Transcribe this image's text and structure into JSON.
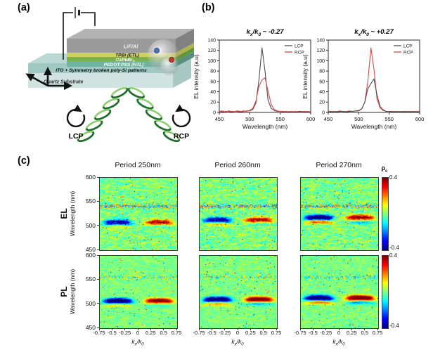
{
  "panels": {
    "a": "(a)",
    "b": "(b)",
    "c": "(c)"
  },
  "device": {
    "layers": [
      {
        "name": "cathode",
        "label": "LiF/Al",
        "color": "#9b9b9b",
        "text_color": "#f2f2f2"
      },
      {
        "name": "etl",
        "label": "TPBi (ETL)",
        "color": "#ced35e",
        "text_color": "#1a1a1a"
      },
      {
        "name": "emitter",
        "label": "CsPbBr",
        "label_sub": "3",
        "color": "#79b14e",
        "text_color": "#ffffff"
      },
      {
        "name": "htl",
        "label": "PEDOT:PSS (HTL)",
        "color": "#6fb3a0",
        "text_color": "#ffffff"
      },
      {
        "name": "ito",
        "label": "ITO + Symmetry broken poly-Si patterns",
        "color": "#9ac6be",
        "text_color": "#111111"
      },
      {
        "name": "substrate",
        "label": "Quartz Substrate",
        "color": "#cde2de",
        "text_color": "#333333"
      }
    ],
    "lcp_label": "LCP",
    "rcp_label": "RCP",
    "helix_dark": "#1e6f2d",
    "helix_light": "#8fce6f"
  },
  "chart_data": [
    {
      "type": "line",
      "title": "kx/k0 ~ -0.27",
      "xlabel": "Wavelength (nm)",
      "ylabel": "EL intensity (a.u)",
      "xlim": [
        450,
        600
      ],
      "ylim": [
        0,
        140
      ],
      "xticks": [
        450,
        500,
        550,
        600
      ],
      "yticks": [
        0,
        20,
        40,
        60,
        80,
        100,
        120,
        140
      ],
      "legend": [
        {
          "label": "LCP",
          "color": "#4d4d4d"
        },
        {
          "label": "RCP",
          "color": "#e04545"
        }
      ],
      "x": [
        450,
        455,
        460,
        465,
        470,
        475,
        480,
        485,
        490,
        495,
        500,
        505,
        510,
        515,
        520,
        525,
        530,
        535,
        540,
        545,
        550,
        555,
        560,
        565,
        570,
        575,
        580,
        585,
        590,
        595,
        600
      ],
      "series": [
        {
          "name": "LCP",
          "color": "#4d4d4d",
          "values": [
            2,
            1,
            2,
            2,
            1,
            2,
            2,
            1,
            2,
            3,
            3,
            6,
            18,
            62,
            125,
            80,
            24,
            8,
            4,
            2,
            2,
            1,
            2,
            1,
            2,
            1,
            2,
            2,
            1,
            2,
            1
          ]
        },
        {
          "name": "RCP",
          "color": "#e04545",
          "values": [
            2,
            3,
            1,
            3,
            2,
            2,
            3,
            2,
            3,
            2,
            4,
            8,
            22,
            50,
            63,
            67,
            42,
            16,
            6,
            3,
            2,
            2,
            1,
            2,
            1,
            2,
            1,
            1,
            2,
            1,
            2
          ]
        }
      ]
    },
    {
      "type": "line",
      "title": "kx/k0 ~ +0.27",
      "xlabel": "Wavelength (nm)",
      "ylabel": "EL intensity (a.u)",
      "xlim": [
        450,
        600
      ],
      "ylim": [
        0,
        140
      ],
      "xticks": [
        450,
        500,
        550,
        600
      ],
      "yticks": [
        0,
        20,
        40,
        60,
        80,
        100,
        120,
        140
      ],
      "legend": [
        {
          "label": "LCP",
          "color": "#4d4d4d"
        },
        {
          "label": "RCP",
          "color": "#e04545"
        }
      ],
      "x": [
        450,
        455,
        460,
        465,
        470,
        475,
        480,
        485,
        490,
        495,
        500,
        505,
        510,
        515,
        520,
        525,
        530,
        535,
        540,
        545,
        550,
        555,
        560,
        565,
        570,
        575,
        580,
        585,
        590,
        595,
        600
      ],
      "series": [
        {
          "name": "LCP",
          "color": "#4d4d4d",
          "values": [
            2,
            1,
            2,
            1,
            2,
            2,
            1,
            2,
            2,
            3,
            3,
            7,
            20,
            46,
            56,
            65,
            34,
            12,
            5,
            2,
            2,
            1,
            2,
            1,
            2,
            1,
            2,
            1,
            2,
            1,
            2
          ]
        },
        {
          "name": "RCP",
          "color": "#e04545",
          "values": [
            2,
            2,
            1,
            2,
            3,
            1,
            2,
            3,
            2,
            3,
            4,
            7,
            20,
            60,
            125,
            84,
            26,
            9,
            4,
            2,
            2,
            2,
            1,
            2,
            1,
            2,
            1,
            2,
            1,
            2,
            1
          ]
        }
      ]
    },
    {
      "type": "heatmap",
      "row": "EL",
      "title": "Period 250nm",
      "xlabel": "kx/k0",
      "ylabel": "Wavelength (nm)",
      "xlim": [
        -0.75,
        0.75
      ],
      "ylim": [
        450,
        600
      ],
      "xticks": [
        -0.75,
        -0.5,
        -0.25,
        0,
        0.25,
        0.5,
        0.75
      ],
      "yticks": [
        600,
        550,
        500,
        450
      ],
      "colorbar": {
        "label": "ρc",
        "max": 0.4,
        "min": -0.4
      },
      "features": {
        "lcp_lobe": {
          "kx": -0.4,
          "wavelength": 508,
          "rho": -0.4
        },
        "rcp_lobe": {
          "kx": 0.4,
          "wavelength": 508,
          "rho": 0.4
        },
        "fringe_yellow": 0.1,
        "fringe_cyan": 0.04,
        "noise": 0.085,
        "noise_band_wavelength": 541,
        "noise_band_amp": 0.55,
        "lobe_noise": 0.55,
        "seed": 11
      }
    },
    {
      "type": "heatmap",
      "row": "EL",
      "title": "Period 260nm",
      "xlabel": "kx/k0",
      "ylabel": "Wavelength (nm)",
      "xlim": [
        -0.75,
        0.75
      ],
      "ylim": [
        450,
        600
      ],
      "xticks": [
        -0.75,
        -0.5,
        -0.25,
        0,
        0.25,
        0.5,
        0.75
      ],
      "yticks": [
        600,
        550,
        500,
        450
      ],
      "colorbar": {
        "label": "ρc",
        "max": 0.4,
        "min": -0.4
      },
      "features": {
        "lcp_lobe": {
          "kx": -0.4,
          "wavelength": 513,
          "rho": -0.42
        },
        "rcp_lobe": {
          "kx": 0.4,
          "wavelength": 513,
          "rho": 0.4
        },
        "fringe_yellow": 0.14,
        "fringe_cyan": 0.06,
        "noise": 0.085,
        "noise_band_wavelength": 541,
        "noise_band_amp": 0.55,
        "lobe_noise": 0.5,
        "seed": 22
      }
    },
    {
      "type": "heatmap",
      "row": "EL",
      "title": "Period 270nm",
      "xlabel": "kx/k0",
      "ylabel": "Wavelength (nm)",
      "xlim": [
        -0.75,
        0.75
      ],
      "ylim": [
        450,
        600
      ],
      "xticks": [
        -0.75,
        -0.5,
        -0.25,
        0,
        0.25,
        0.5,
        0.75
      ],
      "yticks": [
        600,
        550,
        500,
        450
      ],
      "colorbar": {
        "label": "ρc",
        "max": 0.4,
        "min": -0.4
      },
      "features": {
        "lcp_lobe": {
          "kx": -0.4,
          "wavelength": 518,
          "rho": -0.52
        },
        "rcp_lobe": {
          "kx": 0.4,
          "wavelength": 518,
          "rho": 0.46
        },
        "fringe_yellow": 0.26,
        "fringe_cyan": 0.14,
        "noise": 0.085,
        "noise_band_wavelength": 541,
        "noise_band_amp": 0.55,
        "lobe_noise": 0.45,
        "seed": 33
      }
    },
    {
      "type": "heatmap",
      "row": "PL",
      "title": "Period 250nm",
      "xlabel": "kx/k0",
      "ylabel": "Wavelength (nm)",
      "xlim": [
        -0.75,
        0.75
      ],
      "ylim": [
        450,
        600
      ],
      "xticks": [
        -0.75,
        -0.5,
        -0.25,
        0,
        0.25,
        0.5,
        0.75
      ],
      "yticks": [
        600,
        550,
        500,
        450
      ],
      "colorbar": {
        "label": "ρc",
        "max": 0.4,
        "min": -0.4
      },
      "features": {
        "lcp_lobe": {
          "kx": -0.4,
          "wavelength": 507,
          "rho": -0.56
        },
        "rcp_lobe": {
          "kx": 0.4,
          "wavelength": 507,
          "rho": 0.46
        },
        "fringe_yellow": 0.12,
        "fringe_cyan": 0.08,
        "noise": 0.05,
        "noise_band_wavelength": 556,
        "noise_band_amp": 0.35,
        "lobe_noise": 0.15,
        "seed": 44
      }
    },
    {
      "type": "heatmap",
      "row": "PL",
      "title": "Period 260nm",
      "xlabel": "kx/k0",
      "ylabel": "Wavelength (nm)",
      "xlim": [
        -0.75,
        0.75
      ],
      "ylim": [
        450,
        600
      ],
      "xticks": [
        -0.75,
        -0.5,
        -0.25,
        0,
        0.25,
        0.5,
        0.75
      ],
      "yticks": [
        600,
        550,
        500,
        450
      ],
      "colorbar": {
        "label": "ρc",
        "max": 0.4,
        "min": -0.4
      },
      "features": {
        "lcp_lobe": {
          "kx": -0.4,
          "wavelength": 510,
          "rho": -0.55
        },
        "rcp_lobe": {
          "kx": 0.4,
          "wavelength": 510,
          "rho": 0.5
        },
        "fringe_yellow": 0.18,
        "fringe_cyan": 0.16,
        "noise": 0.05,
        "noise_band_wavelength": 556,
        "noise_band_amp": 0.35,
        "lobe_noise": 0.15,
        "seed": 55
      }
    },
    {
      "type": "heatmap",
      "row": "PL",
      "title": "Period 270nm",
      "xlabel": "kx/k0",
      "ylabel": "Wavelength (nm)",
      "xlim": [
        -0.75,
        0.75
      ],
      "ylim": [
        450,
        600
      ],
      "xticks": [
        -0.75,
        -0.5,
        -0.25,
        0,
        0.25,
        0.5,
        0.75
      ],
      "yticks": [
        600,
        550,
        500,
        450
      ],
      "colorbar": {
        "label": "ρc",
        "max": 0.4,
        "min": -0.4
      },
      "features": {
        "lcp_lobe": {
          "kx": -0.4,
          "wavelength": 513,
          "rho": -0.58
        },
        "rcp_lobe": {
          "kx": 0.4,
          "wavelength": 513,
          "rho": 0.54
        },
        "fringe_yellow": 0.22,
        "fringe_cyan": 0.18,
        "noise": 0.05,
        "noise_band_wavelength": 556,
        "noise_band_amp": 0.35,
        "lobe_noise": 0.15,
        "seed": 66
      }
    }
  ],
  "panel_c": {
    "row_labels": [
      "EL",
      "PL"
    ],
    "column_titles": [
      "Period 250nm",
      "Period 260nm",
      "Period 270nm"
    ],
    "ylabel": "Wavelength (nm)",
    "xlabel": "kx/k0",
    "colorbar_label": "ρc",
    "colorbar_max": "0.4",
    "colorbar_min": "-0.4"
  }
}
